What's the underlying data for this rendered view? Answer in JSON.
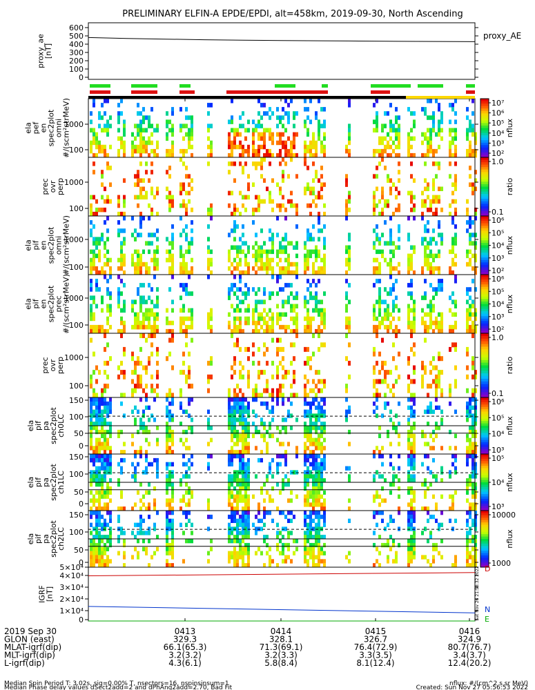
{
  "title": "PRELIMINARY ELFIN-A EPDE/EPDI, alt=458km, 2019-09-30, North Ascending",
  "chart_data": [
    {
      "type": "line",
      "name": "proxy_ae",
      "ylabel": [
        "proxy_ae",
        "[nT]"
      ],
      "right_label": "proxy_AE",
      "yticks": [
        "600",
        "500",
        "400",
        "300",
        "200",
        "100",
        "0"
      ],
      "ylim": [
        0,
        650
      ],
      "series": [
        {
          "values": [
            480,
            470,
            462,
            455,
            450,
            446,
            443,
            440,
            437,
            435,
            433
          ]
        }
      ]
    },
    {
      "type": "heatmap",
      "name": "ela-pef-en-omni",
      "ylabel": [
        "ela",
        "pef",
        "en",
        "spec2plot",
        "omni",
        "#/(scm²strMeV)"
      ],
      "yticks": [
        "1000",
        "100"
      ],
      "colorbar": {
        "label": "nflux",
        "ticks": [
          "10⁷",
          "10⁶",
          "10⁵",
          "10⁴",
          "10³",
          "10²"
        ]
      }
    },
    {
      "type": "heatmap",
      "name": "pef-prec-ovr-perp",
      "ylabel": [
        "prec",
        "ovr",
        "perp"
      ],
      "yticks": [
        "1000",
        "100"
      ],
      "colorbar": {
        "label": "ratio",
        "ticks": [
          "1.0",
          "0.1"
        ]
      }
    },
    {
      "type": "heatmap",
      "name": "ela-pif-en-omni",
      "ylabel": [
        "ela",
        "pif",
        "en",
        "spec2plot",
        "omni",
        "#/(scm²strMeV)"
      ],
      "yticks": [
        "1000",
        "100"
      ],
      "colorbar": {
        "label": "nflux",
        "ticks": [
          "10⁶",
          "10⁵",
          "10⁴",
          "10³",
          "10²"
        ]
      }
    },
    {
      "type": "heatmap",
      "name": "ela-pif-en-prec",
      "ylabel": [
        "ela",
        "pif",
        "en",
        "spec2plot",
        "prec",
        "#/(scm²strMeV)"
      ],
      "yticks": [
        "1000",
        "100"
      ],
      "colorbar": {
        "label": "nflux",
        "ticks": [
          "10⁶",
          "10⁵",
          "10⁴",
          "10³",
          "10²"
        ]
      }
    },
    {
      "type": "heatmap",
      "name": "pif-prec-ovr-perp",
      "ylabel": [
        "prec",
        "ovr",
        "perp"
      ],
      "yticks": [
        "1000",
        "100"
      ],
      "colorbar": {
        "label": "ratio",
        "ticks": [
          "1.0",
          "0.1"
        ]
      }
    },
    {
      "type": "heatmap",
      "name": "ela-pif-pa-ch0LC",
      "ylabel": [
        "ela",
        "pif",
        "pa",
        "spec2plot",
        "ch0LC"
      ],
      "yticks": [
        "150",
        "100",
        "50",
        "0"
      ],
      "colorbar": {
        "label": "nflux",
        "ticks": [
          "10⁶",
          "10⁵",
          "10⁴",
          "10³"
        ]
      }
    },
    {
      "type": "heatmap",
      "name": "ela-pif-pa-ch1LC",
      "ylabel": [
        "ela",
        "pif",
        "pa",
        "spec2plot",
        "ch1LC"
      ],
      "yticks": [
        "150",
        "100",
        "50",
        "0"
      ],
      "colorbar": {
        "label": "nflux",
        "ticks": [
          "10⁵",
          "10⁴",
          "10³"
        ]
      }
    },
    {
      "type": "heatmap",
      "name": "ela-pif-pa-ch2LC",
      "ylabel": [
        "ela",
        "pif",
        "pa",
        "spec2plot",
        "ch2LC"
      ],
      "yticks": [
        "150",
        "100",
        "50",
        "0"
      ],
      "colorbar": {
        "label": "nflux",
        "ticks": [
          "10000",
          "1000"
        ]
      }
    },
    {
      "type": "line",
      "name": "IGRF",
      "ylabel": [
        "IGRF",
        "[nT]"
      ],
      "yticks": [
        "5×10⁴",
        "4×10⁴",
        "3×10⁴",
        "2×10⁴",
        "1×10⁴",
        "0"
      ],
      "ylim": [
        0,
        50000
      ],
      "series": [
        {
          "name": "D",
          "color": "#cc0000",
          "values": [
            42000,
            45000
          ]
        },
        {
          "name": "N",
          "color": "#0033cc",
          "values": [
            13500,
            7500
          ]
        },
        {
          "name": "E",
          "color": "#00aa00",
          "values": [
            0,
            0
          ]
        }
      ]
    }
  ],
  "side_stamp": "Sat Nov 26 21:58:32 2022",
  "xaxis": {
    "rows": [
      {
        "label": "2019 Sep 30",
        "values": [
          "0413",
          "0414",
          "0415",
          "0416"
        ]
      },
      {
        "label": "GLON (east)",
        "values": [
          "329.3",
          "328.1",
          "326.7",
          "324.9"
        ]
      },
      {
        "label": "MLAT-igrf(dip)",
        "values": [
          "66.1(65.3)",
          "71.3(69.1)",
          "76.4(72.9)",
          "80.7(76.7)"
        ]
      },
      {
        "label": "MLT-igrf(dip)",
        "values": [
          "3.2(3.2)",
          "3.2(3.3)",
          "3.3(3.5)",
          "3.4(3.7)"
        ]
      },
      {
        "label": "L-igrf(dip)",
        "values": [
          "4.3(6.1)",
          "5.8(8.4)",
          "8.1(12.4)",
          "12.4(20.2)"
        ]
      }
    ]
  },
  "footer": {
    "line1": "Median Spin Period T: 3.02s, sig=0.00% T, nsectors=16, nspinsinsum=1",
    "line2": "Median Phase delay values dSect2add=2 and dPhAng2add=2.70, Bad Fit",
    "right1": "nflux: #/(cm^2 s sr MeV)",
    "right2": "Created: Sun Nov 27 05:56:53 2022"
  }
}
